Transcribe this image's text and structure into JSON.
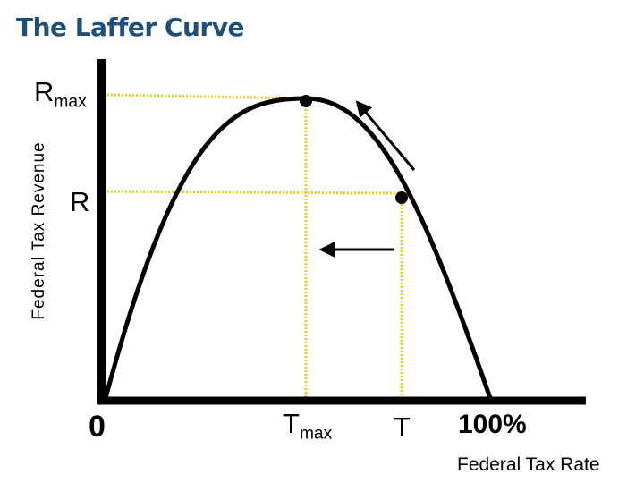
{
  "title": "The Laffer Curve",
  "y_axis_label": "Federal Tax Revenue",
  "x_axis_label": "Federal Tax Rate",
  "labels": {
    "rmax_main": "R",
    "rmax_sub": "max",
    "r": "R",
    "zero": "0",
    "tmax_main": "T",
    "tmax_sub": "max",
    "t": "T",
    "hundred": "100%"
  },
  "colors": {
    "title": "#1f4e79",
    "guides": "#f2c811",
    "curve": "#000000"
  }
}
